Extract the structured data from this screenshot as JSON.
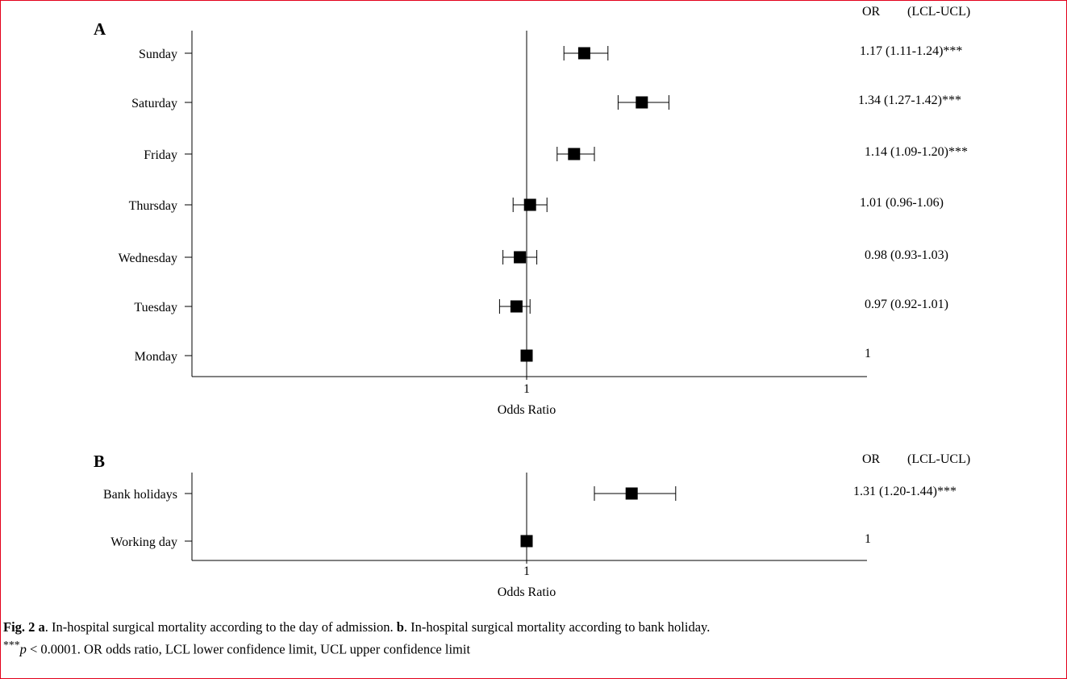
{
  "chart_data": [
    {
      "type": "forest",
      "panel_label": "A",
      "header": {
        "or": "OR",
        "ci": "(LCL-UCL)"
      },
      "xlabel": "Odds Ratio",
      "x_ticks": [
        {
          "value": 1,
          "label": "1"
        }
      ],
      "xlim": [
        0.6,
        1.6
      ],
      "reference_line": 1,
      "rows": [
        {
          "label": "Sunday",
          "or": 1.17,
          "lcl": 1.11,
          "ucl": 1.24,
          "text": "1.17 (1.11-1.24)***"
        },
        {
          "label": "Saturday",
          "or": 1.34,
          "lcl": 1.27,
          "ucl": 1.42,
          "text": "1.34 (1.27-1.42)***"
        },
        {
          "label": "Friday",
          "or": 1.14,
          "lcl": 1.09,
          "ucl": 1.2,
          "text": "1.14 (1.09-1.20)***"
        },
        {
          "label": "Thursday",
          "or": 1.01,
          "lcl": 0.96,
          "ucl": 1.06,
          "text": "1.01 (0.96-1.06)"
        },
        {
          "label": "Wednesday",
          "or": 0.98,
          "lcl": 0.93,
          "ucl": 1.03,
          "text": "0.98 (0.93-1.03)"
        },
        {
          "label": "Tuesday",
          "or": 0.97,
          "lcl": 0.92,
          "ucl": 1.01,
          "text": "0.97 (0.92-1.01)"
        },
        {
          "label": "Monday",
          "or": 1,
          "lcl": null,
          "ucl": null,
          "text": "1"
        }
      ]
    },
    {
      "type": "forest",
      "panel_label": "B",
      "header": {
        "or": "OR",
        "ci": "(LCL-UCL)"
      },
      "xlabel": "Odds Ratio",
      "x_ticks": [
        {
          "value": 1,
          "label": "1"
        }
      ],
      "xlim": [
        0.6,
        1.6
      ],
      "reference_line": 1,
      "rows": [
        {
          "label": "Bank holidays",
          "or": 1.31,
          "lcl": 1.2,
          "ucl": 1.44,
          "text": "1.31 (1.20-1.44)***"
        },
        {
          "label": "Working day",
          "or": 1,
          "lcl": null,
          "ucl": null,
          "text": "1"
        }
      ]
    }
  ],
  "caption": {
    "fig_label": "Fig. 2",
    "part_a_letter": "a",
    "part_a_text": ". In-hospital surgical mortality according to the day of admission. ",
    "part_b_letter": "b",
    "part_b_text": ". In-hospital surgical mortality according to bank holiday. ",
    "sig_stars": "***",
    "sig_p": "p",
    "sig_rest": " < 0.0001. OR odds ratio, LCL lower confidence limit, UCL upper confidence limit"
  }
}
